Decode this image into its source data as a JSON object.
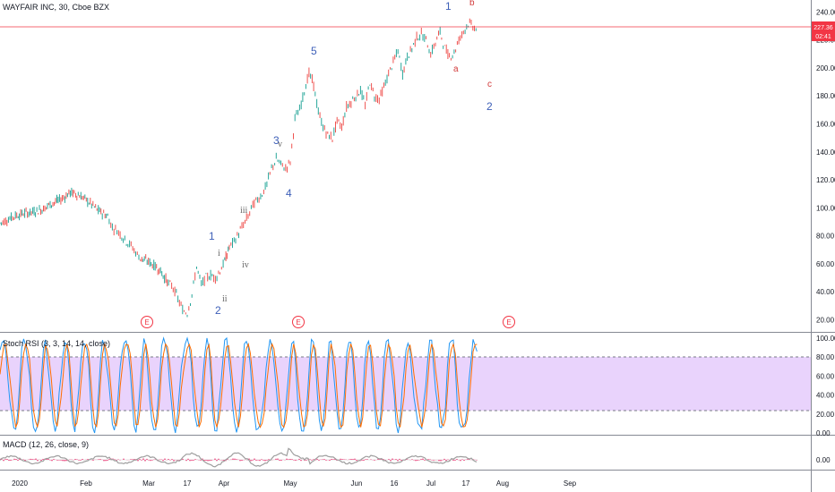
{
  "chart_data": {
    "type": "line",
    "title": "WAYFAIR INC, 30, Cboe BZX",
    "price_axis": {
      "ylim": [
        12,
        246
      ],
      "ticks": [
        "20.00",
        "40.00",
        "60.00",
        "80.00",
        "100.00",
        "120.00",
        "140.00",
        "160.00",
        "180.00",
        "200.00",
        "220.00",
        "240.00"
      ]
    },
    "last_price": "227.36",
    "countdown": "02:41",
    "x_axis": {
      "labels": [
        "2020",
        "Feb",
        "Mar",
        "17",
        "Apr",
        "May",
        "Jun",
        "16",
        "Jul",
        "17",
        "Aug",
        "Sep"
      ]
    },
    "price_series": {
      "x": [
        0,
        6,
        10,
        14,
        18,
        22,
        26,
        30,
        34,
        38,
        42,
        46,
        48,
        50,
        52,
        54,
        56,
        58,
        60,
        64,
        68,
        72,
        74,
        76,
        78,
        80,
        82,
        84,
        86,
        88,
        90,
        92,
        94,
        96,
        97,
        98,
        100,
        102,
        104,
        106,
        108,
        110,
        112,
        114,
        116,
        118,
        120,
        122,
        124,
        126,
        128,
        130,
        132,
        134,
        136,
        138,
        140,
        142,
        144,
        146,
        148,
        150,
        152,
        154,
        156,
        158,
        160,
        162,
        164,
        166,
        168,
        170,
        172,
        174,
        176,
        178,
        180,
        182,
        184,
        186,
        188,
        190,
        192,
        194,
        196,
        198,
        200,
        202,
        204
      ],
      "y": [
        89,
        94,
        96,
        97,
        99,
        103,
        106,
        111,
        109,
        104,
        98,
        94,
        86,
        84,
        80,
        76,
        73,
        68,
        64,
        61,
        56,
        46,
        43,
        35,
        27,
        25,
        38,
        58,
        45,
        50,
        52,
        50,
        55,
        62,
        67,
        72,
        76,
        82,
        88,
        94,
        102,
        106,
        110,
        117,
        128,
        135,
        131,
        128,
        133,
        164,
        170,
        184,
        196,
        188,
        168,
        158,
        152,
        150,
        162,
        158,
        172,
        176,
        180,
        184,
        173,
        190,
        180,
        178,
        186,
        196,
        204,
        212,
        196,
        208,
        214,
        222,
        224,
        220,
        210,
        218,
        226,
        214,
        208,
        211,
        220,
        226,
        232,
        230,
        227
      ]
    },
    "wave_labels": [
      "1",
      "2",
      "3",
      "4",
      "5",
      "i",
      "ii",
      "iii",
      "iv",
      "v",
      "1",
      "2",
      "a",
      "b",
      "c"
    ],
    "earnings_marker": "E",
    "stoch_rsi": {
      "title": "Stoch RSI (3, 3, 14, 14, close)",
      "ylim": [
        0,
        100
      ],
      "ticks": [
        "0.00",
        "20.00",
        "40.00",
        "60.00",
        "80.00",
        "100.00"
      ],
      "upper_band": 80,
      "lower_band": 20
    },
    "macd": {
      "title": "MACD (12, 26, close, 9)",
      "ticks": [
        "0.00"
      ]
    }
  },
  "colors": {
    "up": "#26a69a",
    "down": "#ef5350",
    "k_line": "#2196f3",
    "d_line": "#ff6d00",
    "price_line": "#f23645",
    "band_fill": "#e1c8fb",
    "macd_line": "#9e9e9e",
    "hist": "#e91e63"
  }
}
